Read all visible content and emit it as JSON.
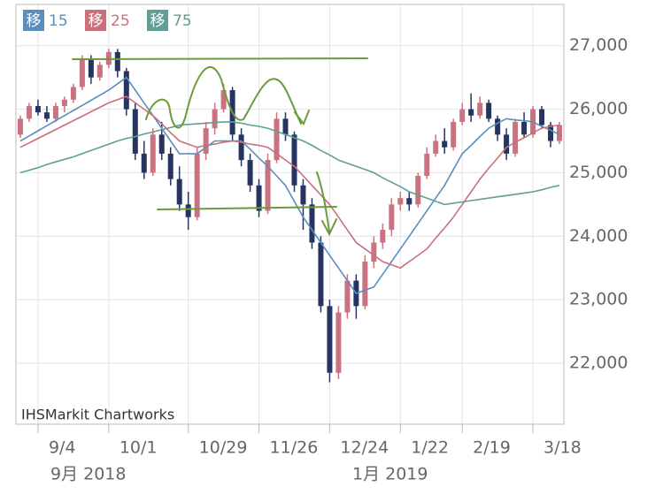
{
  "chart_data": {
    "type": "candlestick",
    "credit": "IHSMarkit Chartworks",
    "categories": [
      null,
      null,
      "9/4",
      null,
      null,
      null,
      null,
      null,
      null,
      null,
      "10/1",
      null,
      null,
      null,
      null,
      null,
      null,
      null,
      null,
      "10/29",
      null,
      null,
      null,
      null,
      null,
      null,
      null,
      "11/26",
      null,
      null,
      null,
      null,
      null,
      null,
      null,
      "12/24",
      null,
      null,
      null,
      null,
      null,
      null,
      null,
      "1/22",
      null,
      null,
      null,
      null,
      null,
      null,
      "2/19",
      null,
      null,
      null,
      null,
      null,
      null,
      null,
      "3/18",
      null,
      null,
      null
    ],
    "x_group_labels": [
      "9月 2018",
      "1月 2019"
    ],
    "up_color": "#c8737f",
    "down_color": "#27345f",
    "ohlc": [
      [
        25600,
        25900,
        25550,
        25850
      ],
      [
        25850,
        26100,
        25800,
        26050
      ],
      [
        26050,
        26150,
        25900,
        25950
      ],
      [
        25950,
        26050,
        25800,
        25850
      ],
      [
        25850,
        26100,
        25800,
        26050
      ],
      [
        26050,
        26200,
        25950,
        26150
      ],
      [
        26150,
        26400,
        26100,
        26350
      ],
      [
        26350,
        26850,
        26300,
        26800
      ],
      [
        26800,
        26850,
        26400,
        26500
      ],
      [
        26500,
        26750,
        26450,
        26700
      ],
      [
        26700,
        26950,
        26650,
        26900
      ],
      [
        26900,
        26950,
        26500,
        26600
      ],
      [
        26600,
        26650,
        25900,
        26000
      ],
      [
        26000,
        26100,
        25200,
        25300
      ],
      [
        25300,
        25500,
        24900,
        25000
      ],
      [
        25000,
        25700,
        24950,
        25600
      ],
      [
        25600,
        25800,
        25200,
        25300
      ],
      [
        25300,
        25400,
        24800,
        24900
      ],
      [
        24900,
        25100,
        24400,
        24500
      ],
      [
        24500,
        24700,
        24100,
        24300
      ],
      [
        24300,
        25400,
        24250,
        25300
      ],
      [
        25300,
        25800,
        25200,
        25700
      ],
      [
        25700,
        26100,
        25600,
        26000
      ],
      [
        26000,
        26400,
        25950,
        26300
      ],
      [
        26300,
        26350,
        25500,
        25600
      ],
      [
        25600,
        25700,
        25100,
        25200
      ],
      [
        25200,
        25300,
        24700,
        24800
      ],
      [
        24800,
        24900,
        24300,
        24400
      ],
      [
        24400,
        25300,
        24350,
        25200
      ],
      [
        25200,
        25950,
        25150,
        25850
      ],
      [
        25850,
        25950,
        25500,
        25600
      ],
      [
        25600,
        25650,
        24700,
        24800
      ],
      [
        24800,
        24900,
        24100,
        24500
      ],
      [
        24500,
        24600,
        23800,
        23900
      ],
      [
        23900,
        24000,
        22800,
        22900
      ],
      [
        22900,
        23000,
        21700,
        21850
      ],
      [
        21850,
        22900,
        21750,
        22800
      ],
      [
        22800,
        23400,
        22700,
        23300
      ],
      [
        23300,
        23400,
        22700,
        22900
      ],
      [
        22900,
        23700,
        22850,
        23600
      ],
      [
        23600,
        24000,
        23500,
        23900
      ],
      [
        23900,
        24200,
        23800,
        24100
      ],
      [
        24100,
        24600,
        24000,
        24500
      ],
      [
        24500,
        24700,
        24400,
        24600
      ],
      [
        24600,
        24700,
        24400,
        24500
      ],
      [
        24500,
        25000,
        24450,
        24950
      ],
      [
        24950,
        25400,
        24900,
        25300
      ],
      [
        25300,
        25600,
        25250,
        25500
      ],
      [
        25500,
        25700,
        25300,
        25400
      ],
      [
        25400,
        25850,
        25350,
        25800
      ],
      [
        25800,
        26100,
        25750,
        26000
      ],
      [
        26000,
        26250,
        25800,
        25900
      ],
      [
        25900,
        26200,
        25850,
        26100
      ],
      [
        26100,
        26150,
        25800,
        25850
      ],
      [
        25850,
        25900,
        25500,
        25600
      ],
      [
        25600,
        25700,
        25200,
        25300
      ],
      [
        25300,
        25850,
        25250,
        25800
      ],
      [
        25800,
        25950,
        25550,
        25600
      ],
      [
        25600,
        26050,
        25550,
        26000
      ],
      [
        26000,
        26050,
        25700,
        25750
      ],
      [
        25750,
        25800,
        25400,
        25500
      ],
      [
        25500,
        25800,
        25450,
        25750
      ]
    ],
    "series": [
      {
        "badge": "移",
        "name": "15",
        "color": "#5a8fbd",
        "values": [
          25500,
          25580,
          25660,
          25740,
          25820,
          25900,
          25980,
          26060,
          26140,
          26220,
          26300,
          26400,
          26500,
          26300,
          26100,
          25900,
          25700,
          25500,
          25300,
          25300,
          25300,
          25400,
          25500,
          25500,
          25500,
          25500,
          25370,
          25230,
          25100,
          24950,
          24800,
          24550,
          24300,
          24100,
          23900,
          23700,
          23500,
          23300,
          23100,
          23150,
          23200,
          23400,
          23600,
          23800,
          24000,
          24200,
          24400,
          24600,
          24800,
          25050,
          25300,
          25430,
          25570,
          25700,
          25780,
          25850,
          25830,
          25820,
          25800,
          25730,
          25670,
          25600
        ]
      },
      {
        "badge": "移",
        "name": "25",
        "color": "#c9707c",
        "values": [
          25400,
          25470,
          25540,
          25610,
          25680,
          25750,
          25820,
          25890,
          25960,
          26030,
          26100,
          26150,
          26200,
          26100,
          26000,
          25900,
          25770,
          25630,
          25500,
          25450,
          25400,
          25430,
          25450,
          25480,
          25500,
          25480,
          25450,
          25430,
          25400,
          25300,
          25200,
          25100,
          24950,
          24800,
          24650,
          24500,
          24300,
          24100,
          23900,
          23800,
          23700,
          23600,
          23550,
          23500,
          23600,
          23700,
          23800,
          23970,
          24130,
          24300,
          24500,
          24700,
          24900,
          25070,
          25230,
          25400,
          25480,
          25550,
          25630,
          25700,
          25730,
          25750
        ]
      },
      {
        "badge": "移",
        "name": "75",
        "color": "#5f9f96",
        "values": [
          25000,
          25040,
          25080,
          25130,
          25170,
          25210,
          25250,
          25300,
          25350,
          25400,
          25450,
          25500,
          25540,
          25570,
          25610,
          25640,
          25680,
          25710,
          25750,
          25760,
          25770,
          25780,
          25790,
          25800,
          25800,
          25780,
          25750,
          25730,
          25700,
          25650,
          25600,
          25550,
          25500,
          25430,
          25350,
          25280,
          25200,
          25150,
          25100,
          25050,
          25000,
          24920,
          24850,
          24780,
          24700,
          24650,
          24600,
          24550,
          24500,
          24520,
          24540,
          24560,
          24580,
          24600,
          24620,
          24640,
          24660,
          24680,
          24700,
          24730,
          24770,
          24800
        ]
      }
    ],
    "ylim": [
      21040,
      27650
    ],
    "yticks": [
      {
        "value": 22000,
        "label": "22,000"
      },
      {
        "value": 23000,
        "label": "23,000"
      },
      {
        "value": 24000,
        "label": "24,000"
      },
      {
        "value": 25000,
        "label": "25,000"
      },
      {
        "value": 26000,
        "label": "26,000"
      },
      {
        "value": 27000,
        "label": "27,000"
      }
    ],
    "grid": true
  }
}
